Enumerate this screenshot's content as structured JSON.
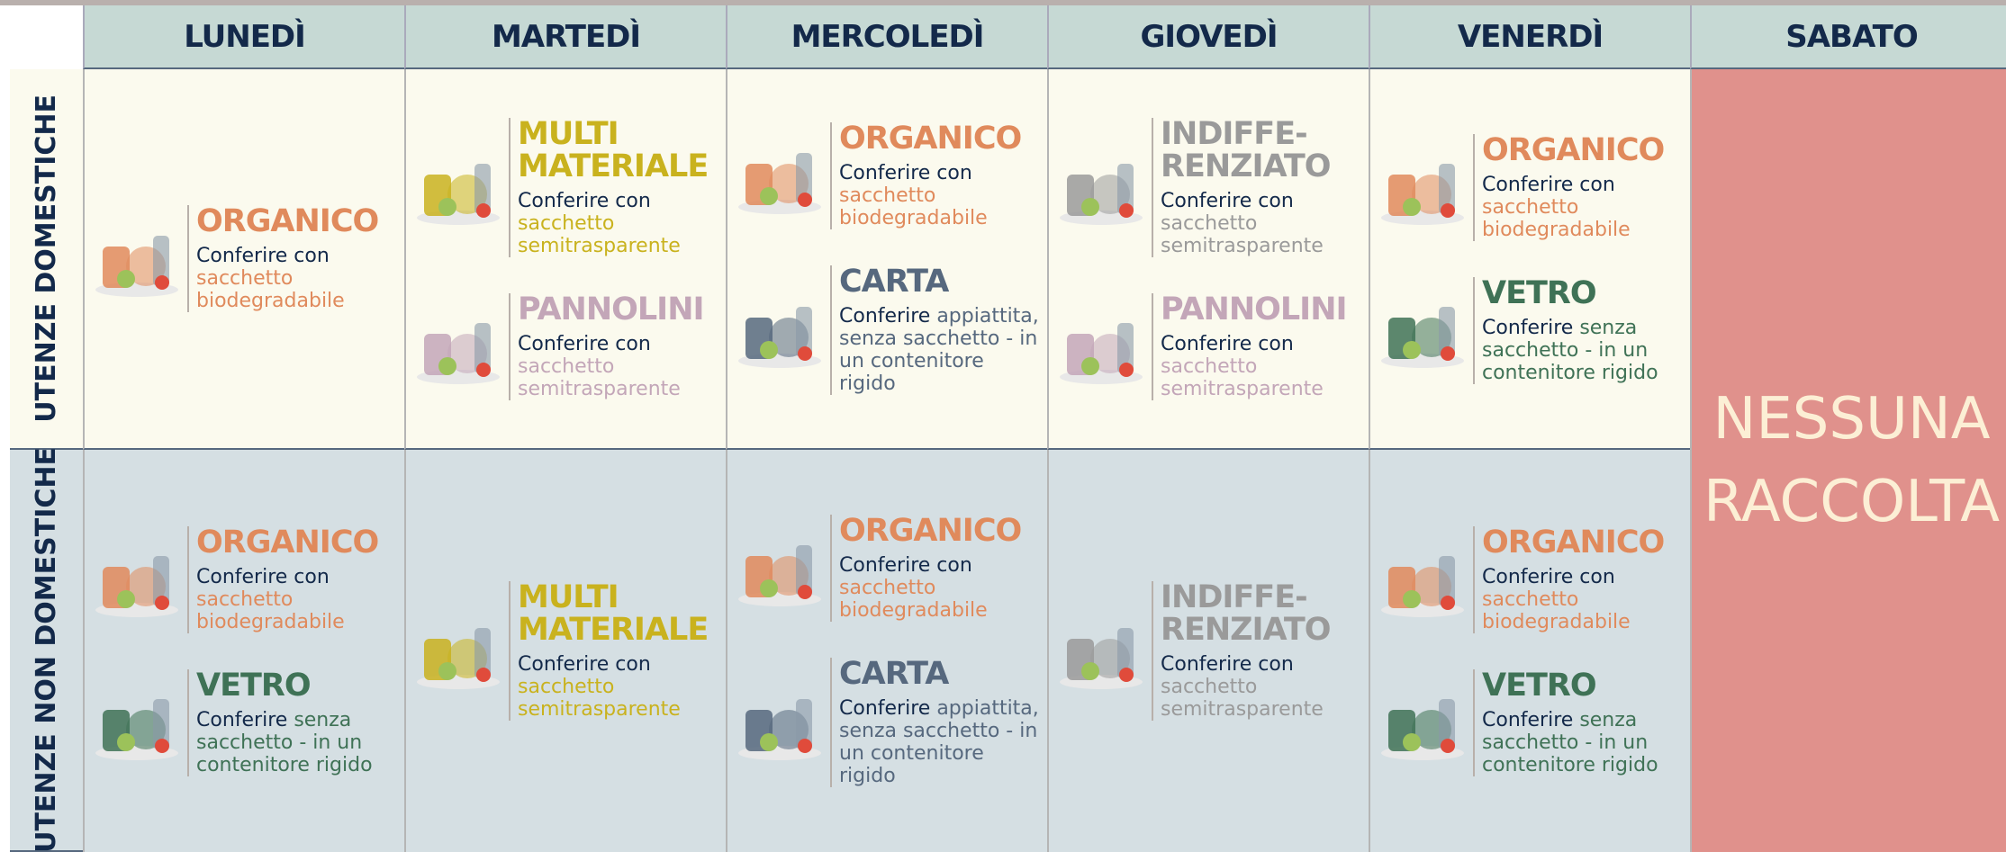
{
  "days": [
    "LUNEDÌ",
    "MARTEDÌ",
    "MERCOLEDÌ",
    "GIOVEDÌ",
    "VENERDÌ",
    "SABATO"
  ],
  "rows": [
    {
      "label": "UTENZE DOMESTICHE",
      "cells": [
        [
          {
            "title": [
              "ORGANICO"
            ],
            "lead": "Conferire con",
            "detail": "sacchetto biodegradabile",
            "color": "#e08a5c"
          }
        ],
        [
          {
            "title": [
              "MULTI",
              "MATERIALE"
            ],
            "lead": "Conferire con",
            "detail": "sacchetto semitrasparente",
            "color": "#c9b21e"
          },
          {
            "title": [
              "PANNOLINI"
            ],
            "lead": "Conferire con",
            "detail": "sacchetto semitrasparente",
            "color": "#c3a6b8"
          }
        ],
        [
          {
            "title": [
              "ORGANICO"
            ],
            "lead": "Conferire con",
            "detail": "sacchetto biodegradabile",
            "color": "#e08a5c"
          },
          {
            "title": [
              "CARTA"
            ],
            "lead": "Conferire",
            "detail": "appiattita, senza sacchetto - in un contenitore rigido",
            "color": "#56687e"
          }
        ],
        [
          {
            "title": [
              "INDIFFE-",
              "RENZIATO"
            ],
            "lead": "Conferire con",
            "detail": "sacchetto semitrasparente",
            "color": "#9a9a9a"
          },
          {
            "title": [
              "PANNOLINI"
            ],
            "lead": "Conferire con",
            "detail": "sacchetto semitrasparente",
            "color": "#c3a6b8"
          }
        ],
        [
          {
            "title": [
              "ORGANICO"
            ],
            "lead": "Conferire con",
            "detail": "sacchetto biodegradabile",
            "color": "#e08a5c"
          },
          {
            "title": [
              "VETRO"
            ],
            "lead": "Conferire",
            "detail": "senza sacchetto - in un contenitore rigido",
            "color": "#3f7256"
          }
        ]
      ]
    },
    {
      "label": "UTENZE NON DOMESTICHE",
      "cells": [
        [
          {
            "title": [
              "ORGANICO"
            ],
            "lead": "Conferire con",
            "detail": "sacchetto biodegradabile",
            "color": "#e08a5c"
          },
          {
            "title": [
              "VETRO"
            ],
            "lead": "Conferire",
            "detail": "senza sacchetto - in un contenitore rigido",
            "color": "#3f7256"
          }
        ],
        [
          {
            "title": [
              "MULTI",
              "MATERIALE"
            ],
            "lead": "Conferire con",
            "detail": "sacchetto semitrasparente",
            "color": "#c9b21e"
          }
        ],
        [
          {
            "title": [
              "ORGANICO"
            ],
            "lead": "Conferire con",
            "detail": "sacchetto biodegradabile",
            "color": "#e08a5c"
          },
          {
            "title": [
              "CARTA"
            ],
            "lead": "Conferire",
            "detail": "appiattita, senza sacchetto - in un contenitore rigido",
            "color": "#56687e"
          }
        ],
        [
          {
            "title": [
              "INDIFFE-",
              "RENZIATO"
            ],
            "lead": "Conferire con",
            "detail": "sacchetto semitrasparente",
            "color": "#9a9a9a"
          }
        ],
        [
          {
            "title": [
              "ORGANICO"
            ],
            "lead": "Conferire con",
            "detail": "sacchetto biodegradabile",
            "color": "#e08a5c"
          },
          {
            "title": [
              "VETRO"
            ],
            "lead": "Conferire",
            "detail": "senza sacchetto - in un contenitore rigido",
            "color": "#3f7256"
          }
        ]
      ]
    }
  ],
  "saturday": [
    "NESSUNA",
    "RACCOLTA"
  ]
}
